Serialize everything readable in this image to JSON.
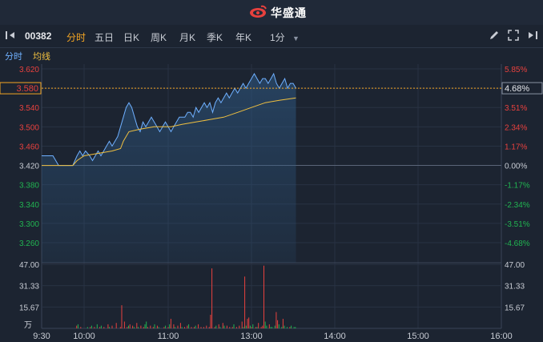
{
  "header": {
    "brand": "华盛通"
  },
  "toolbar": {
    "code": "00382",
    "tabs": [
      "分时",
      "五日",
      "日K",
      "周K",
      "月K",
      "季K",
      "年K"
    ],
    "active_tab": "分时",
    "interval": "1分"
  },
  "subbar": {
    "fenshi": "分时",
    "junxian": "均线"
  },
  "colors": {
    "background": "#1c2431",
    "up": "#e8413e",
    "down": "#21b451",
    "price_line": "#6fb0ff",
    "avg_line": "#f0c040",
    "accent": "#f5a623"
  },
  "chart_data": [
    {
      "type": "line",
      "title": "",
      "prev_close": 3.42,
      "current_price": "3.580",
      "current_change": "4.68%",
      "y_ticks_left": [
        "3.620",
        "3.580",
        "3.540",
        "3.500",
        "3.460",
        "3.420",
        "3.380",
        "3.340",
        "3.300",
        "3.260"
      ],
      "y_ticks_right": [
        "5.85%",
        "4.68%",
        "3.51%",
        "2.34%",
        "1.17%",
        "0.00%",
        "-1.17%",
        "-2.34%",
        "-3.51%",
        "-4.68%"
      ],
      "ylim": [
        3.24,
        3.62
      ],
      "x_ticks": [
        "9:30",
        "10:00",
        "11:00",
        "13:00",
        "14:00",
        "15:00",
        "16:00"
      ],
      "series": [
        {
          "name": "分时",
          "points": [
            [
              0,
              3.44
            ],
            [
              8,
              3.44
            ],
            [
              12,
              3.42
            ],
            [
              22,
              3.42
            ],
            [
              25,
              3.44
            ],
            [
              27,
              3.45
            ],
            [
              29,
              3.44
            ],
            [
              31,
              3.45
            ],
            [
              34,
              3.44
            ],
            [
              36,
              3.43
            ],
            [
              38,
              3.44
            ],
            [
              40,
              3.45
            ],
            [
              42,
              3.44
            ],
            [
              44,
              3.45
            ],
            [
              46,
              3.46
            ],
            [
              48,
              3.47
            ],
            [
              50,
              3.46
            ],
            [
              52,
              3.47
            ],
            [
              54,
              3.48
            ],
            [
              56,
              3.5
            ],
            [
              58,
              3.52
            ],
            [
              60,
              3.54
            ],
            [
              62,
              3.55
            ],
            [
              64,
              3.54
            ],
            [
              66,
              3.52
            ],
            [
              68,
              3.5
            ],
            [
              70,
              3.49
            ],
            [
              72,
              3.51
            ],
            [
              74,
              3.5
            ],
            [
              76,
              3.51
            ],
            [
              78,
              3.52
            ],
            [
              80,
              3.51
            ],
            [
              82,
              3.5
            ],
            [
              84,
              3.49
            ],
            [
              86,
              3.5
            ],
            [
              88,
              3.51
            ],
            [
              90,
              3.5
            ],
            [
              92,
              3.49
            ],
            [
              94,
              3.5
            ],
            [
              96,
              3.51
            ],
            [
              98,
              3.52
            ],
            [
              100,
              3.52
            ],
            [
              102,
              3.52
            ],
            [
              104,
              3.53
            ],
            [
              106,
              3.53
            ],
            [
              108,
              3.52
            ],
            [
              110,
              3.54
            ],
            [
              112,
              3.53
            ],
            [
              114,
              3.54
            ],
            [
              116,
              3.55
            ],
            [
              118,
              3.54
            ],
            [
              120,
              3.55
            ],
            [
              122,
              3.53
            ],
            [
              124,
              3.55
            ],
            [
              126,
              3.56
            ],
            [
              128,
              3.55
            ],
            [
              130,
              3.56
            ],
            [
              132,
              3.57
            ],
            [
              134,
              3.56
            ],
            [
              136,
              3.57
            ],
            [
              138,
              3.58
            ],
            [
              140,
              3.57
            ],
            [
              142,
              3.58
            ],
            [
              144,
              3.59
            ],
            [
              146,
              3.58
            ],
            [
              148,
              3.59
            ],
            [
              150,
              3.6
            ],
            [
              152,
              3.61
            ],
            [
              154,
              3.6
            ],
            [
              156,
              3.59
            ],
            [
              158,
              3.6
            ],
            [
              160,
              3.6
            ],
            [
              162,
              3.59
            ],
            [
              164,
              3.6
            ],
            [
              166,
              3.61
            ],
            [
              168,
              3.59
            ],
            [
              170,
              3.58
            ],
            [
              172,
              3.59
            ],
            [
              174,
              3.6
            ],
            [
              176,
              3.58
            ],
            [
              178,
              3.59
            ],
            [
              180,
              3.59
            ],
            [
              182,
              3.58
            ]
          ]
        },
        {
          "name": "均线",
          "points": [
            [
              0,
              3.42
            ],
            [
              22,
              3.42
            ],
            [
              25,
              3.43
            ],
            [
              30,
              3.44
            ],
            [
              40,
              3.445
            ],
            [
              50,
              3.45
            ],
            [
              56,
              3.455
            ],
            [
              58,
              3.47
            ],
            [
              62,
              3.49
            ],
            [
              70,
              3.495
            ],
            [
              80,
              3.5
            ],
            [
              92,
              3.5
            ],
            [
              100,
              3.505
            ],
            [
              110,
              3.51
            ],
            [
              120,
              3.515
            ],
            [
              130,
              3.52
            ],
            [
              140,
              3.53
            ],
            [
              150,
              3.54
            ],
            [
              160,
              3.55
            ],
            [
              170,
              3.555
            ],
            [
              182,
              3.56
            ]
          ]
        }
      ]
    },
    {
      "type": "bar",
      "title": "",
      "unit": "万",
      "y_ticks": [
        "47.00",
        "31.33",
        "15.67"
      ],
      "ylim": [
        0,
        47
      ],
      "values": [
        0,
        0,
        0,
        0,
        0,
        0,
        0,
        0,
        0,
        0,
        0,
        0,
        0,
        0,
        0,
        0,
        0,
        0,
        0,
        0,
        0,
        0,
        0,
        0,
        0,
        2,
        3,
        0,
        1,
        0,
        0,
        0,
        0,
        1,
        0,
        1,
        2,
        0,
        1,
        0,
        3,
        0,
        1,
        2,
        0,
        1,
        0,
        0,
        3,
        1,
        0,
        2,
        0,
        0,
        4,
        0,
        0,
        1,
        17,
        0,
        5,
        0,
        1,
        2,
        3,
        0,
        2,
        1,
        0,
        4,
        1,
        0,
        2,
        0,
        1,
        3,
        5,
        1,
        0,
        2,
        0,
        1,
        3,
        0,
        2,
        1,
        0,
        0,
        0,
        1,
        2,
        0,
        1,
        3,
        7,
        0,
        3,
        1,
        0,
        2,
        0,
        4,
        1,
        0,
        1,
        0,
        2,
        3,
        0,
        1,
        0,
        1,
        2,
        0,
        3,
        0,
        1,
        0,
        1,
        0,
        2,
        0,
        1,
        10,
        44,
        0,
        1,
        2,
        0,
        3,
        1,
        0,
        4,
        2,
        0,
        2,
        0,
        1,
        0,
        1,
        3,
        0,
        1,
        0,
        2,
        0,
        5,
        1,
        38,
        2,
        7,
        8,
        2,
        1,
        3,
        0,
        1,
        1,
        4,
        0,
        1,
        2,
        46,
        5,
        2,
        0,
        3,
        1,
        1,
        0,
        2,
        12,
        6,
        3,
        0,
        1,
        7,
        2,
        0,
        1,
        0,
        1,
        2,
        0,
        1,
        1
      ],
      "colors": [
        "d",
        "d",
        "d",
        "d",
        "d",
        "d",
        "d",
        "d",
        "d",
        "d",
        "d",
        "d",
        "d",
        "d",
        "d",
        "d",
        "d",
        "d",
        "d",
        "d",
        "d",
        "d",
        "d",
        "d",
        "d",
        "u",
        "d",
        "d",
        "u",
        "d",
        "d",
        "d",
        "d",
        "d",
        "d",
        "u",
        "d",
        "d",
        "u",
        "d",
        "d",
        "d",
        "u",
        "d",
        "d",
        "u",
        "d",
        "d",
        "u",
        "d",
        "d",
        "u",
        "d",
        "d",
        "u",
        "d",
        "d",
        "u",
        "u",
        "d",
        "u",
        "d",
        "u",
        "d",
        "u",
        "d",
        "u",
        "d",
        "d",
        "u",
        "d",
        "d",
        "u",
        "d",
        "u",
        "d",
        "d",
        "u",
        "d",
        "u",
        "d",
        "u",
        "d",
        "d",
        "u",
        "d",
        "d",
        "d",
        "d",
        "u",
        "d",
        "d",
        "u",
        "d",
        "u",
        "d",
        "u",
        "d",
        "d",
        "u",
        "d",
        "u",
        "d",
        "d",
        "u",
        "d",
        "u",
        "d",
        "d",
        "u",
        "d",
        "u",
        "d",
        "d",
        "u",
        "d",
        "u",
        "d",
        "u",
        "d",
        "u",
        "d",
        "u",
        "u",
        "u",
        "d",
        "u",
        "d",
        "d",
        "u",
        "d",
        "d",
        "u",
        "d",
        "d",
        "u",
        "d",
        "u",
        "d",
        "u",
        "d",
        "d",
        "u",
        "d",
        "u",
        "d",
        "u",
        "d",
        "u",
        "d",
        "u",
        "u",
        "d",
        "u",
        "d",
        "d",
        "u",
        "d",
        "u",
        "d",
        "u",
        "u",
        "u",
        "d",
        "d",
        "u",
        "u",
        "d",
        "d",
        "u",
        "d",
        "u",
        "u",
        "d",
        "u",
        "d",
        "u",
        "d",
        "u",
        "d",
        "d",
        "u",
        "d",
        "u"
      ]
    }
  ]
}
